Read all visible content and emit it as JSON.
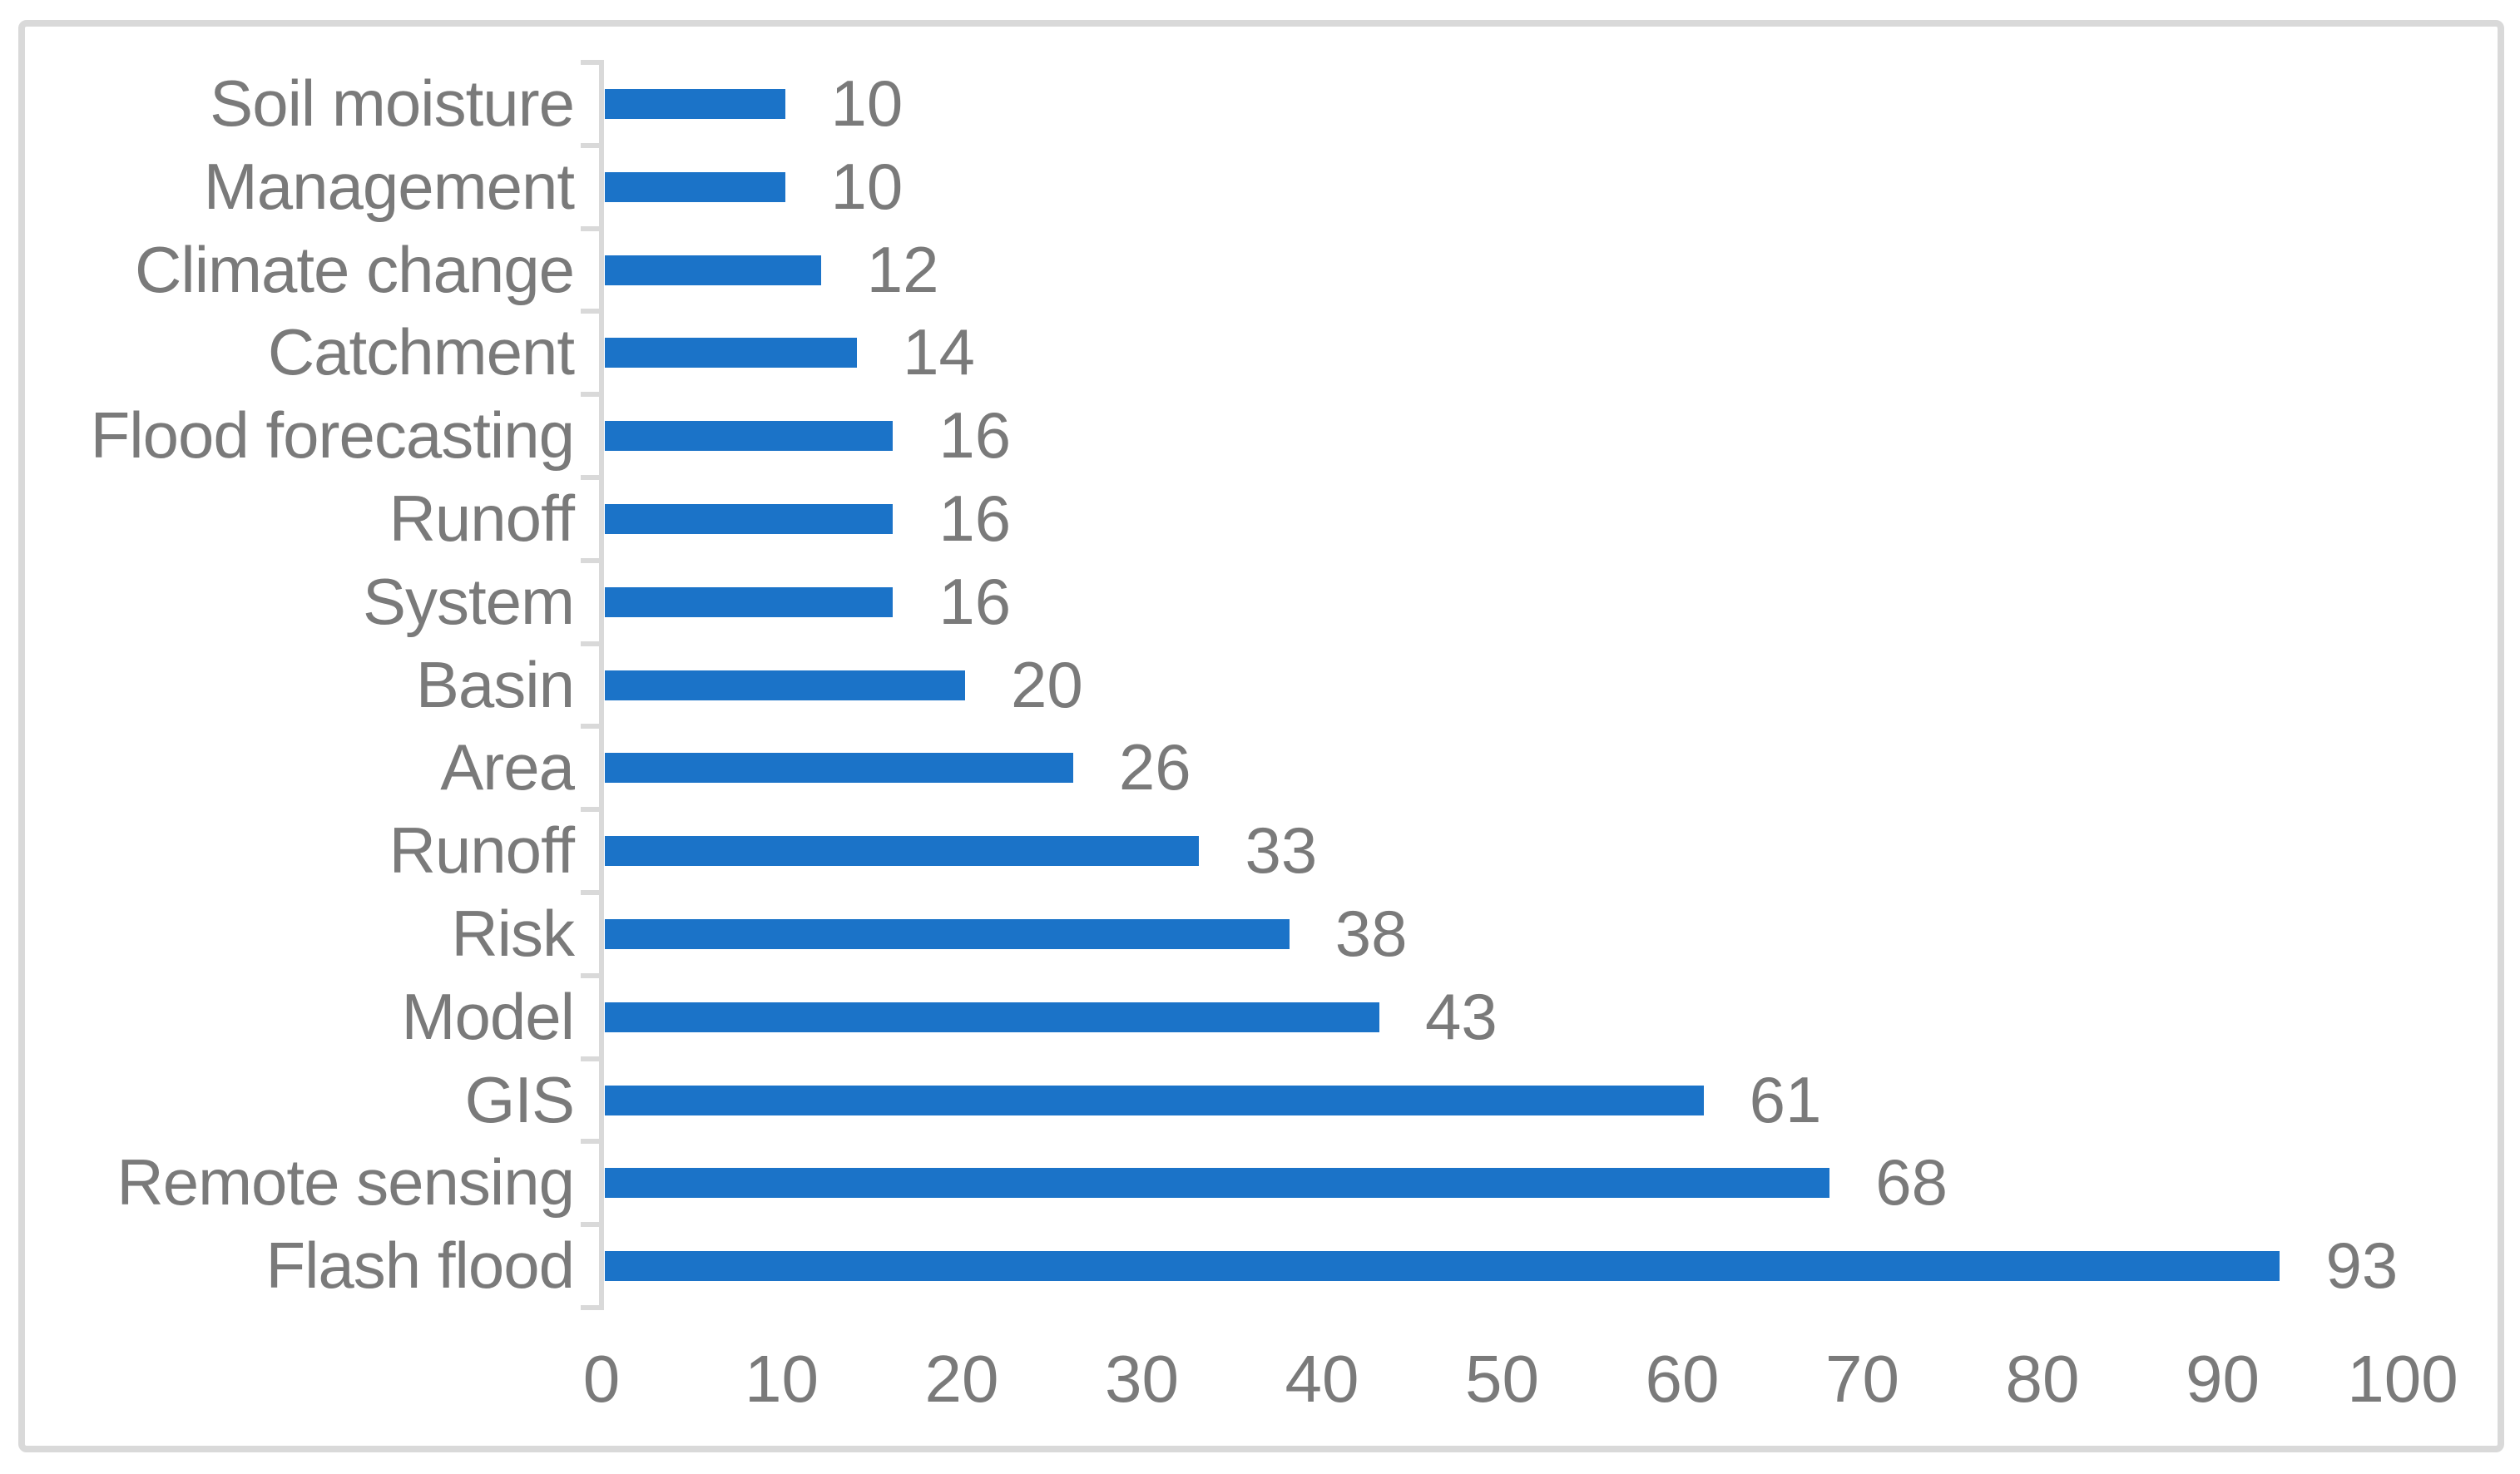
{
  "chart_data": {
    "type": "bar",
    "orientation": "horizontal",
    "title": "",
    "xlabel": "",
    "ylabel": "",
    "categories": [
      "Soil moisture",
      "Management",
      "Climate change",
      "Catchment",
      "Flood forecasting",
      "Runoff",
      "System",
      "Basin",
      "Area",
      "Runoff",
      "Risk",
      "Model",
      "GIS",
      "Remote sensing",
      "Flash flood"
    ],
    "values": [
      10,
      10,
      12,
      14,
      16,
      16,
      16,
      20,
      26,
      33,
      38,
      43,
      61,
      68,
      93
    ],
    "value_labels": [
      "10",
      "10",
      "12",
      "14",
      "16",
      "16",
      "16",
      "20",
      "26",
      "33",
      "38",
      "43",
      "61",
      "68",
      "93"
    ],
    "xlim": [
      0,
      100
    ],
    "x_ticks": [
      0,
      10,
      20,
      30,
      40,
      50,
      60,
      70,
      80,
      90,
      100
    ],
    "grid": "off",
    "legend": "none",
    "bar_color": "#1b73c8",
    "label_color": "#7a7a7a",
    "axis_color": "#d9d9d9",
    "border_color": "#d9d9d9"
  }
}
